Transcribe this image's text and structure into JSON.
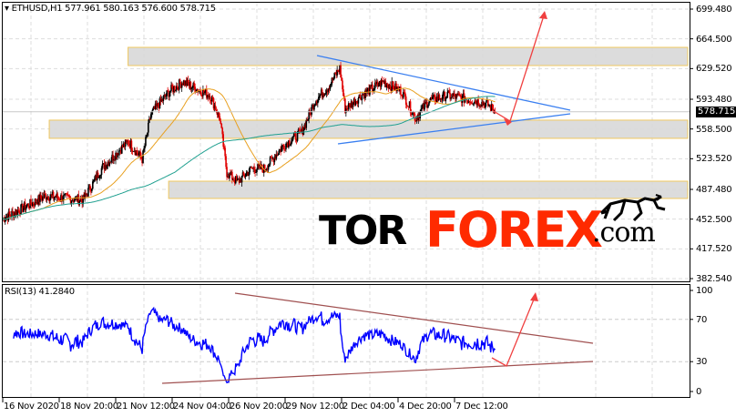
{
  "header": {
    "symbol": "ETHUSD,H1",
    "ohlc": "577.961 580.163 576.600 578.715",
    "title_text": "▾ ETHUSD,H1  577.961 580.163 576.600 578.715"
  },
  "indicator": {
    "label": "RSI(13) 41.2840"
  },
  "current_price": "578.715",
  "logo": {
    "part1": "TOR",
    "part2": "FOREX",
    "part3": ".com"
  },
  "colors": {
    "bear_candle": "#e00000",
    "bull_candle": "#000000",
    "ma_fast": "#e8a020",
    "ma_slow": "#20a090",
    "rsi": "#0000ff",
    "trendline": "#3a7ff0",
    "rsi_trendline": "#a05050",
    "forecast_arrow": "#f04040",
    "zone_fill": "#d8d8d8",
    "zone_border": "#f0c860",
    "brand_red": "#ff2a00"
  },
  "chart_data": {
    "type": "candlestick",
    "timeframe": "H1",
    "ylim": [
      382.54,
      699.48
    ],
    "price_ticks": [
      "699.480",
      "664.500",
      "629.520",
      "593.480",
      "558.500",
      "523.520",
      "487.480",
      "452.500",
      "417.520",
      "382.540"
    ],
    "time_ticks": [
      {
        "label": "16 Nov 2020",
        "t": "2020-11-16T00:00"
      },
      {
        "label": "18 Nov 20:00",
        "t": "2020-11-18T20:00"
      },
      {
        "label": "21 Nov 12:00",
        "t": "2020-11-21T12:00"
      },
      {
        "label": "24 Nov 04:00",
        "t": "2020-11-24T04:00"
      },
      {
        "label": "26 Nov 20:00",
        "t": "2020-11-26T20:00"
      },
      {
        "label": "29 Nov 12:00",
        "t": "2020-11-29T12:00"
      },
      {
        "label": "2 Dec 04:00",
        "t": "2020-12-02T04:00"
      },
      {
        "label": "4 Dec 20:00",
        "t": "2020-12-04T20:00"
      },
      {
        "label": "7 Dec 12:00",
        "t": "2020-12-07T12:00"
      }
    ],
    "price_path": [
      [
        "2020-11-16T00:00",
        453
      ],
      [
        "2020-11-18T04:00",
        480
      ],
      [
        "2020-11-19T23:00",
        475
      ],
      [
        "2020-11-20T20:00",
        512
      ],
      [
        "2020-11-22T02:00",
        544
      ],
      [
        "2020-11-22T18:00",
        523
      ],
      [
        "2020-11-23T04:00",
        576
      ],
      [
        "2020-11-24T01:00",
        603
      ],
      [
        "2020-11-24T16:00",
        614
      ],
      [
        "2020-11-25T23:00",
        598
      ],
      [
        "2020-11-26T10:00",
        571
      ],
      [
        "2020-11-26T18:00",
        507
      ],
      [
        "2020-11-27T06:00",
        496
      ],
      [
        "2020-11-27T22:00",
        512
      ],
      [
        "2020-11-28T13:00",
        512
      ],
      [
        "2020-11-29T10:00",
        539
      ],
      [
        "2020-11-30T07:00",
        555
      ],
      [
        "2020-11-30T22:00",
        592
      ],
      [
        "2020-12-01T13:00",
        608
      ],
      [
        "2020-12-02T02:00",
        630
      ],
      [
        "2020-12-02T08:00",
        582
      ],
      [
        "2020-12-03T02:00",
        598
      ],
      [
        "2020-12-04T03:00",
        614
      ],
      [
        "2020-12-05T00:00",
        603
      ],
      [
        "2020-12-05T16:00",
        571
      ],
      [
        "2020-12-06T07:00",
        592
      ],
      [
        "2020-12-07T04:00",
        598
      ],
      [
        "2020-12-08T11:00",
        592
      ],
      [
        "2020-12-09T02:00",
        587
      ],
      [
        "2020-12-09T10:00",
        578.715
      ]
    ],
    "zones": [
      {
        "from": 633.1,
        "to": 654.5,
        "start": "2020-11-22T02:00"
      },
      {
        "from": 547.5,
        "to": 568.9,
        "start": "2020-11-18T08:00"
      },
      {
        "from": 476.8,
        "to": 497.1,
        "start": "2020-11-24T00:00"
      }
    ],
    "rsi": {
      "period": 13,
      "value": 41.284,
      "ylim": [
        0,
        100
      ],
      "ticks": [
        "100",
        "70",
        "30",
        "0"
      ]
    }
  }
}
